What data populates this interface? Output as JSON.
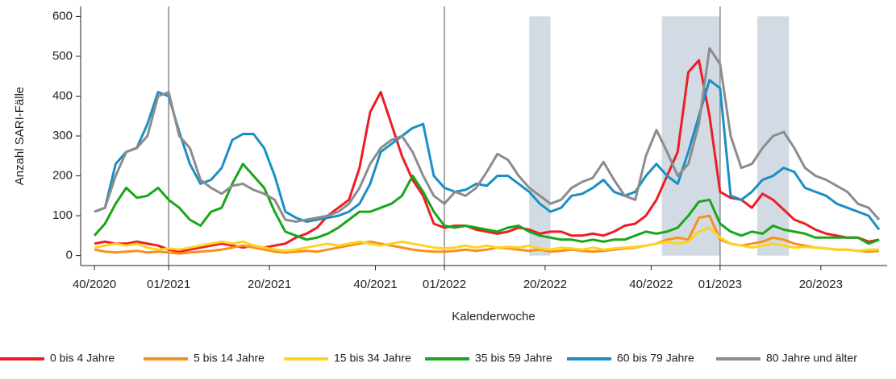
{
  "chart_data": {
    "type": "line",
    "y_label": "Anzahl SARI-Fälle",
    "x_label": "Kalenderwoche",
    "x": [
      0,
      2,
      4,
      6,
      8,
      10,
      12,
      14,
      16,
      18,
      20,
      22,
      24,
      26,
      28,
      30,
      32,
      34,
      36,
      38,
      40,
      42,
      44,
      46,
      48,
      50,
      52,
      54,
      56,
      58,
      60,
      62,
      64,
      66,
      68,
      70,
      72,
      74,
      76,
      78,
      80,
      82,
      84,
      86,
      88,
      90,
      92,
      94,
      96,
      98,
      100,
      102,
      104,
      106,
      108,
      110,
      112,
      114,
      116,
      118,
      120,
      122,
      124,
      126,
      128,
      130,
      132,
      134,
      136,
      138,
      140,
      142,
      144,
      146,
      148
    ],
    "series": [
      {
        "name": "0 bis 4 Jahre",
        "color": "#ee1c25",
        "values": [
          30,
          35,
          30,
          30,
          35,
          30,
          25,
          15,
          10,
          15,
          20,
          25,
          30,
          25,
          20,
          25,
          20,
          25,
          30,
          45,
          55,
          70,
          100,
          120,
          140,
          220,
          360,
          410,
          330,
          250,
          190,
          150,
          80,
          70,
          75,
          75,
          65,
          60,
          55,
          60,
          70,
          65,
          55,
          60,
          60,
          50,
          50,
          55,
          50,
          60,
          75,
          80,
          100,
          140,
          200,
          260,
          460,
          490,
          350,
          160,
          145,
          140,
          120,
          155,
          140,
          115,
          90,
          80,
          65,
          55,
          50,
          45,
          45,
          35,
          40
        ]
      },
      {
        "name": "5 bis 14 Jahre",
        "color": "#f7901e",
        "values": [
          15,
          10,
          8,
          10,
          12,
          8,
          10,
          8,
          5,
          8,
          10,
          12,
          15,
          20,
          25,
          20,
          15,
          10,
          8,
          10,
          12,
          10,
          15,
          20,
          25,
          30,
          35,
          30,
          25,
          20,
          15,
          12,
          10,
          10,
          12,
          15,
          12,
          15,
          20,
          18,
          15,
          12,
          15,
          10,
          12,
          15,
          12,
          10,
          12,
          15,
          18,
          20,
          25,
          30,
          40,
          45,
          40,
          95,
          100,
          40,
          30,
          25,
          30,
          35,
          45,
          40,
          30,
          25,
          20,
          18,
          15,
          15,
          12,
          10,
          12
        ]
      },
      {
        "name": "15 bis 34 Jahre",
        "color": "#ffd21f",
        "values": [
          20,
          25,
          30,
          25,
          30,
          20,
          15,
          18,
          15,
          20,
          25,
          30,
          35,
          30,
          35,
          25,
          20,
          15,
          12,
          15,
          20,
          25,
          30,
          25,
          30,
          35,
          30,
          25,
          30,
          35,
          30,
          25,
          20,
          18,
          20,
          25,
          20,
          25,
          20,
          22,
          20,
          25,
          18,
          15,
          20,
          18,
          15,
          20,
          15,
          18,
          20,
          22,
          25,
          30,
          35,
          30,
          35,
          60,
          70,
          45,
          30,
          25,
          20,
          25,
          30,
          25,
          20,
          22,
          20,
          18,
          15,
          15,
          12,
          15,
          15
        ]
      },
      {
        "name": "35 bis 59 Jahre",
        "color": "#1aa61a",
        "values": [
          50,
          80,
          130,
          170,
          145,
          150,
          170,
          140,
          120,
          90,
          75,
          110,
          120,
          180,
          230,
          200,
          170,
          110,
          60,
          50,
          40,
          45,
          55,
          70,
          90,
          110,
          110,
          120,
          130,
          150,
          200,
          160,
          110,
          75,
          70,
          75,
          70,
          65,
          60,
          70,
          75,
          60,
          50,
          45,
          40,
          40,
          35,
          40,
          35,
          40,
          40,
          50,
          60,
          55,
          60,
          70,
          100,
          135,
          140,
          80,
          60,
          50,
          60,
          55,
          75,
          65,
          60,
          55,
          45,
          45,
          45,
          45,
          45,
          30,
          40
        ]
      },
      {
        "name": "60 bis 79 Jahre",
        "color": "#1a8fc6",
        "values": [
          110,
          120,
          230,
          260,
          270,
          330,
          410,
          400,
          310,
          230,
          180,
          190,
          220,
          290,
          305,
          305,
          270,
          200,
          110,
          95,
          85,
          90,
          95,
          100,
          110,
          130,
          180,
          260,
          280,
          300,
          320,
          330,
          200,
          170,
          160,
          165,
          180,
          175,
          200,
          200,
          180,
          160,
          130,
          110,
          120,
          150,
          155,
          170,
          190,
          160,
          150,
          160,
          200,
          230,
          200,
          180,
          260,
          350,
          440,
          420,
          150,
          140,
          160,
          190,
          200,
          220,
          210,
          170,
          160,
          150,
          130,
          120,
          110,
          100,
          65
        ]
      },
      {
        "name": "80 Jahre und älter",
        "color": "#8c8c8c",
        "values": [
          110,
          120,
          200,
          260,
          270,
          300,
          400,
          410,
          300,
          270,
          190,
          170,
          155,
          175,
          180,
          165,
          155,
          140,
          90,
          85,
          90,
          95,
          100,
          110,
          130,
          170,
          230,
          270,
          290,
          300,
          260,
          200,
          150,
          130,
          160,
          150,
          170,
          210,
          255,
          240,
          200,
          170,
          150,
          130,
          140,
          170,
          185,
          195,
          235,
          190,
          150,
          140,
          250,
          315,
          260,
          200,
          230,
          330,
          520,
          480,
          300,
          220,
          230,
          270,
          300,
          310,
          270,
          220,
          200,
          190,
          175,
          160,
          130,
          120,
          90
        ]
      }
    ],
    "xlim": [
      -2.6,
      149.5
    ],
    "ylim": [
      -25,
      625
    ],
    "xticks": [
      {
        "value": 0,
        "label": "40/2020"
      },
      {
        "value": 14,
        "label": "01/2021"
      },
      {
        "value": 33,
        "label": "20/2021"
      },
      {
        "value": 53,
        "label": "40/2021"
      },
      {
        "value": 66,
        "label": "01/2022"
      },
      {
        "value": 85,
        "label": "20/2022"
      },
      {
        "value": 105,
        "label": "40/2022"
      },
      {
        "value": 118,
        "label": "01/2023"
      },
      {
        "value": 137,
        "label": "20/2023"
      }
    ],
    "yticks": [
      0,
      100,
      200,
      300,
      400,
      500,
      600
    ],
    "year_lines": [
      14,
      66,
      118
    ],
    "shaded_periods": [
      [
        82,
        86
      ],
      [
        107,
        118
      ],
      [
        125,
        131
      ]
    ],
    "legend": "bottom"
  }
}
